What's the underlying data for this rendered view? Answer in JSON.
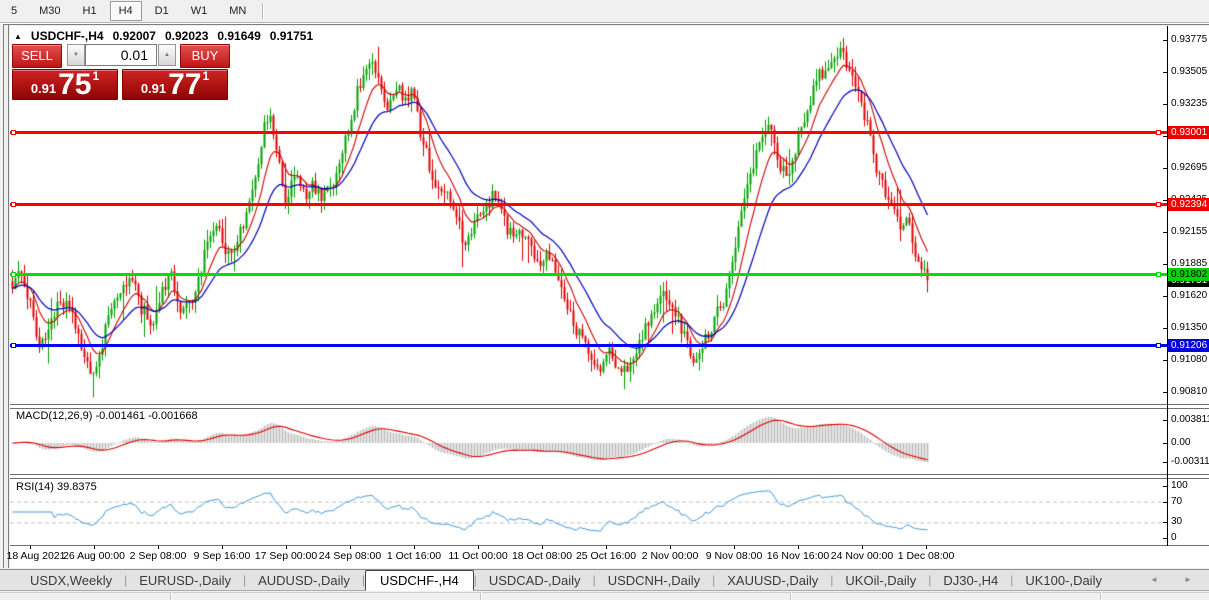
{
  "toolbar": {
    "timeframes": [
      "5",
      "M30",
      "H1",
      "H4",
      "D1",
      "W1",
      "MN"
    ],
    "active_timeframe": "H4"
  },
  "header": {
    "collapse_icon": "▲",
    "title": "USDCHF-,H4",
    "open": "0.92007",
    "high": "0.92023",
    "low": "0.91649",
    "close": "0.91751"
  },
  "trade_panel": {
    "sell_label": "SELL",
    "buy_label": "BUY",
    "volume": "0.01",
    "volume_down_icon": "▼",
    "volume_up_icon": "▲",
    "sell_price": {
      "prefix": "0.91",
      "main": "75",
      "sup": "1"
    },
    "buy_price": {
      "prefix": "0.91",
      "main": "77",
      "sup": "1"
    }
  },
  "macd_panel": {
    "label": "MACD(12,26,9) -0.001461 -0.001668"
  },
  "rsi_panel": {
    "label": "RSI(14) 39.8375"
  },
  "bottom_tabs": {
    "tabs": [
      "USDX,Weekly",
      "EURUSD-,Daily",
      "AUDUSD-,Daily",
      "USDCHF-,H4",
      "USDCAD-,Daily",
      "USDCNH-,Daily",
      "XAUUSD-,Daily",
      "UKOil-,Daily",
      "DJ30-,H4",
      "UK100-,Daily"
    ],
    "active": "USDCHF-,H4",
    "scroll_left_icon": "◄",
    "scroll_right_icon": "►"
  },
  "chart_data": {
    "type": "candlestick",
    "symbol": "USDCHF-",
    "timeframe": "H4",
    "current_bar": {
      "open": 0.92007,
      "high": 0.92023,
      "low": 0.91649,
      "close": 0.91751
    },
    "bid": 0.91751,
    "candles": 306,
    "y_axis": {
      "max": 0.93775,
      "min": 0.9081,
      "ticks": [
        0.93775,
        0.93505,
        0.93235,
        0.92965,
        0.92695,
        0.92425,
        0.92155,
        0.91885,
        0.9162,
        0.9135,
        0.9108,
        0.9081
      ]
    },
    "x_labels": [
      "18 Aug 2021",
      "26 Aug 00:00",
      "2 Sep 08:00",
      "9 Sep 16:00",
      "17 Sep 00:00",
      "24 Sep 08:00",
      "1 Oct 16:00",
      "11 Oct 00:00",
      "18 Oct 08:00",
      "25 Oct 16:00",
      "2 Nov 00:00",
      "9 Nov 08:00",
      "16 Nov 16:00",
      "24 Nov 00:00",
      "1 Dec 08:00"
    ],
    "levels": [
      {
        "price": 0.93001,
        "label": "0.93001",
        "color": "#FF0000",
        "badge_bg": "#F00000",
        "badge_text": "#FFFFFF"
      },
      {
        "price": 0.92394,
        "label": "0.92394",
        "color": "#FF0000",
        "badge_bg": "#F00000",
        "badge_text": "#FFFFFF"
      },
      {
        "price": 0.91802,
        "label": "0.91802",
        "color": "#00E000",
        "badge_bg": "#00D400",
        "badge_text": "#000000"
      },
      {
        "price": 0.91206,
        "label": "0.91206",
        "color": "#0000FF",
        "badge_bg": "#0000DC",
        "badge_text": "#FFFFFF"
      }
    ],
    "price_marker": {
      "price": 0.91751,
      "label": "0.91751",
      "bg": "#000000",
      "text": "#FFFFFF"
    },
    "colors": {
      "up": "#00A000",
      "down": "#E00000",
      "ma_fast": "#CC0000",
      "ma_slow": "#0000BB",
      "macd_hist": "#BBBBBB",
      "macd_signal": "#DD0000",
      "rsi": "#3F95D8",
      "bg": "#FFFFFF"
    },
    "moving_averages": [
      {
        "name": "fast",
        "period": 9,
        "color": "#CC0000"
      },
      {
        "name": "slow",
        "period": 21,
        "color": "#0000BB"
      }
    ],
    "macd": {
      "fast": 12,
      "slow": 26,
      "signal": 9,
      "value": -0.001461,
      "signal_value": -0.001668,
      "axis": [
        0.003811,
        0.0,
        -0.003115
      ]
    },
    "rsi": {
      "period": 14,
      "value": 39.8375,
      "axis": [
        100,
        70,
        30,
        0
      ],
      "guide_levels": [
        70,
        30
      ]
    },
    "close_path": [
      [
        0.0,
        0.9165
      ],
      [
        0.008,
        0.918
      ],
      [
        0.02,
        0.9152
      ],
      [
        0.031,
        0.912
      ],
      [
        0.04,
        0.9136
      ],
      [
        0.052,
        0.9158
      ],
      [
        0.064,
        0.915
      ],
      [
        0.077,
        0.9112
      ],
      [
        0.086,
        0.9096
      ],
      [
        0.096,
        0.9116
      ],
      [
        0.106,
        0.915
      ],
      [
        0.118,
        0.917
      ],
      [
        0.13,
        0.918
      ],
      [
        0.142,
        0.915
      ],
      [
        0.152,
        0.914
      ],
      [
        0.163,
        0.9162
      ],
      [
        0.173,
        0.9178
      ],
      [
        0.184,
        0.9152
      ],
      [
        0.194,
        0.9152
      ],
      [
        0.203,
        0.9172
      ],
      [
        0.213,
        0.9206
      ],
      [
        0.222,
        0.9222
      ],
      [
        0.232,
        0.92
      ],
      [
        0.242,
        0.9196
      ],
      [
        0.252,
        0.9222
      ],
      [
        0.263,
        0.9256
      ],
      [
        0.275,
        0.9302
      ],
      [
        0.283,
        0.931
      ],
      [
        0.291,
        0.9272
      ],
      [
        0.299,
        0.9242
      ],
      [
        0.309,
        0.9262
      ],
      [
        0.319,
        0.9248
      ],
      [
        0.329,
        0.9254
      ],
      [
        0.339,
        0.9246
      ],
      [
        0.349,
        0.9254
      ],
      [
        0.361,
        0.9284
      ],
      [
        0.373,
        0.9322
      ],
      [
        0.386,
        0.9356
      ],
      [
        0.393,
        0.9364
      ],
      [
        0.401,
        0.934
      ],
      [
        0.409,
        0.9324
      ],
      [
        0.419,
        0.9338
      ],
      [
        0.429,
        0.933
      ],
      [
        0.437,
        0.9332
      ],
      [
        0.446,
        0.93
      ],
      [
        0.456,
        0.927
      ],
      [
        0.466,
        0.9252
      ],
      [
        0.476,
        0.9244
      ],
      [
        0.486,
        0.9226
      ],
      [
        0.496,
        0.9202
      ],
      [
        0.506,
        0.9222
      ],
      [
        0.516,
        0.9236
      ],
      [
        0.526,
        0.9248
      ],
      [
        0.536,
        0.9226
      ],
      [
        0.546,
        0.9214
      ],
      [
        0.556,
        0.9216
      ],
      [
        0.566,
        0.9202
      ],
      [
        0.576,
        0.9186
      ],
      [
        0.586,
        0.9196
      ],
      [
        0.596,
        0.918
      ],
      [
        0.606,
        0.915
      ],
      [
        0.618,
        0.9132
      ],
      [
        0.63,
        0.9112
      ],
      [
        0.642,
        0.9096
      ],
      [
        0.652,
        0.9118
      ],
      [
        0.662,
        0.9102
      ],
      [
        0.672,
        0.9096
      ],
      [
        0.684,
        0.9122
      ],
      [
        0.696,
        0.9145
      ],
      [
        0.706,
        0.916
      ],
      [
        0.716,
        0.9163
      ],
      [
        0.726,
        0.9148
      ],
      [
        0.736,
        0.9126
      ],
      [
        0.746,
        0.9108
      ],
      [
        0.756,
        0.9124
      ],
      [
        0.766,
        0.914
      ],
      [
        0.776,
        0.9155
      ],
      [
        0.786,
        0.9188
      ],
      [
        0.796,
        0.9228
      ],
      [
        0.806,
        0.9262
      ],
      [
        0.816,
        0.9288
      ],
      [
        0.825,
        0.9312
      ],
      [
        0.833,
        0.9295
      ],
      [
        0.84,
        0.9268
      ],
      [
        0.847,
        0.9262
      ],
      [
        0.854,
        0.9282
      ],
      [
        0.862,
        0.9302
      ],
      [
        0.87,
        0.9322
      ],
      [
        0.878,
        0.9342
      ],
      [
        0.886,
        0.9352
      ],
      [
        0.896,
        0.936
      ],
      [
        0.906,
        0.937
      ],
      [
        0.916,
        0.9352
      ],
      [
        0.926,
        0.9336
      ],
      [
        0.934,
        0.9305
      ],
      [
        0.944,
        0.9268
      ],
      [
        0.954,
        0.9248
      ],
      [
        0.962,
        0.9238
      ],
      [
        0.971,
        0.9214
      ],
      [
        0.98,
        0.9226
      ],
      [
        0.99,
        0.919
      ],
      [
        1.0,
        0.91751
      ]
    ]
  }
}
